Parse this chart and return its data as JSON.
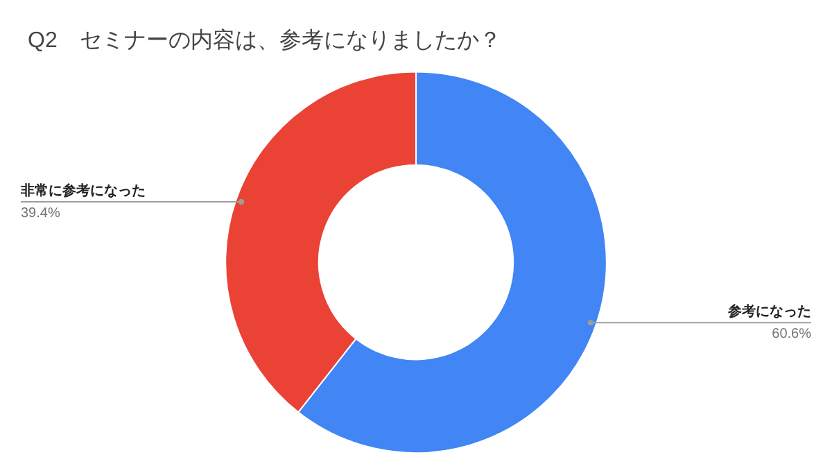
{
  "chart_data": {
    "type": "donut",
    "title": "Q2　セミナーの内容は、参考になりましたか？",
    "categories": [
      "参考になった",
      "非常に参考になった"
    ],
    "values": [
      60.6,
      39.4
    ],
    "value_labels": [
      "60.6%",
      "39.4%"
    ],
    "colors": [
      "#4285f4",
      "#ea4335"
    ],
    "legend": false
  }
}
